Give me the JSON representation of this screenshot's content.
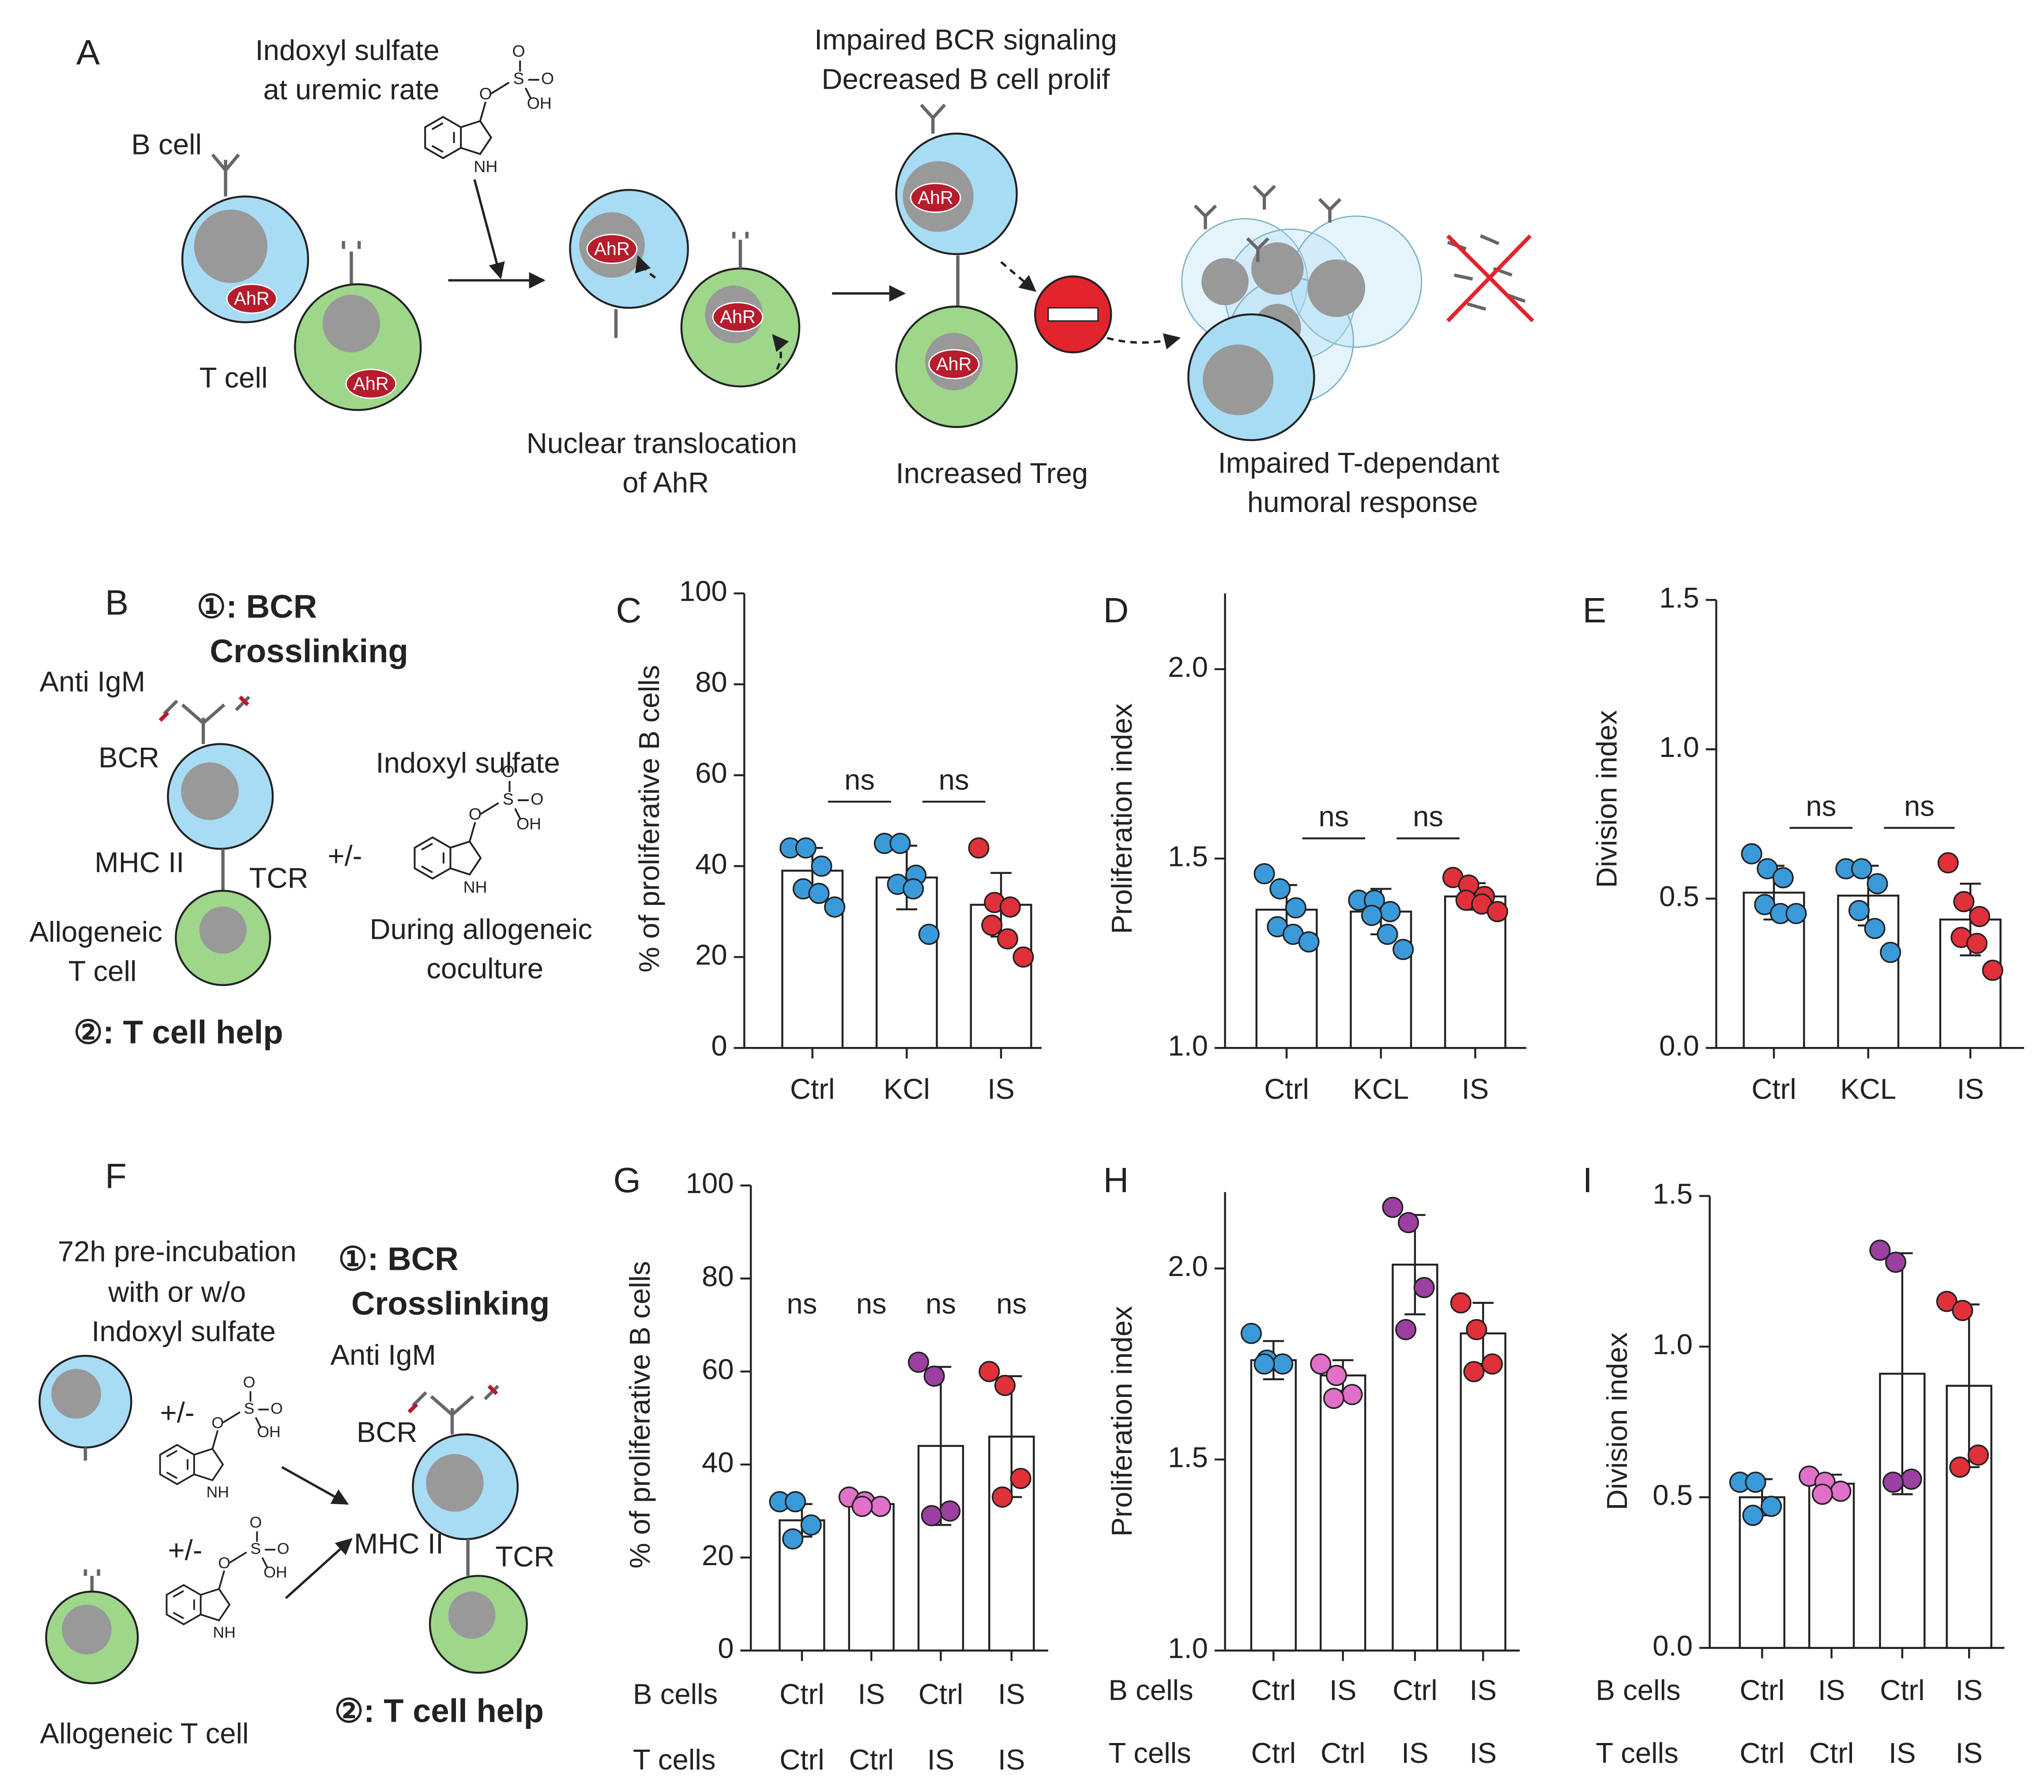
{
  "panels": {
    "A": {
      "letter": "A",
      "indoxyl": [
        "Indoxyl sulfate",
        "at uremic rate"
      ],
      "b_cell": "B cell",
      "t_cell": "T cell",
      "ahr": "AhR",
      "impaired_bcr": [
        "Impaired BCR signaling",
        "Decreased B cell prolif"
      ],
      "nuclear": [
        "Nuclear translocation",
        "of AhR"
      ],
      "treg": "Increased Treg",
      "humoral": [
        "Impaired T-dependant",
        "humoral response"
      ]
    },
    "B": {
      "letter": "B",
      "step1": [
        "①: BCR",
        "Crosslinking"
      ],
      "anti_igm": "Anti IgM",
      "bcr": "BCR",
      "mhc": "MHC II",
      "tcr": "TCR",
      "allo": [
        "Allogeneic",
        "T cell"
      ],
      "step2": "②: T cell help",
      "indoxyl": "Indoxyl sulfate",
      "pm": "+/-",
      "during": [
        "During allogeneic",
        "coculture"
      ]
    },
    "F": {
      "letter": "F",
      "preinc": [
        "72h pre-incubation",
        "with or w/o",
        "Indoxyl sulfate"
      ],
      "pm": "+/-",
      "allo": "Allogeneic T cell",
      "step1": [
        "①: BCR",
        "Crosslinking"
      ],
      "anti_igm": "Anti IgM",
      "bcr": "BCR",
      "mhc": "MHC II",
      "tcr": "TCR",
      "step2": "②: T cell help"
    }
  },
  "molecule": {
    "o": "O",
    "s": "S",
    "oh": "OH",
    "nh": "NH"
  },
  "chart_data": [
    {
      "type": "bar",
      "letter": "C",
      "y_label": "% of proliferative B cells",
      "categories": [
        "Ctrl",
        "KCl",
        "IS"
      ],
      "values": [
        39,
        37.5,
        31.5
      ],
      "errors": [
        5,
        7,
        7
      ],
      "points": [
        [
          44,
          44,
          40,
          35,
          34,
          31
        ],
        [
          45,
          45,
          38,
          36,
          35,
          25
        ],
        [
          44,
          32,
          31,
          27,
          24,
          20
        ]
      ],
      "point_colors": [
        "#3a9ad9",
        "#3a9ad9",
        "#e0303a"
      ],
      "bar_color": "#ffffff",
      "ylim": [
        0,
        100
      ],
      "yticks": [
        0,
        20,
        40,
        60,
        80,
        100
      ],
      "annotations": [
        "ns",
        "ns"
      ]
    },
    {
      "type": "bar",
      "letter": "D",
      "y_label": "Proliferation index",
      "categories": [
        "Ctrl",
        "KCL",
        "IS"
      ],
      "values": [
        1.365,
        1.36,
        1.4
      ],
      "errors": [
        0.065,
        0.06,
        0.035
      ],
      "points": [
        [
          1.46,
          1.42,
          1.37,
          1.32,
          1.3,
          1.28
        ],
        [
          1.39,
          1.39,
          1.36,
          1.35,
          1.3,
          1.26
        ],
        [
          1.45,
          1.43,
          1.4,
          1.39,
          1.38,
          1.36
        ]
      ],
      "point_colors": [
        "#3a9ad9",
        "#3a9ad9",
        "#e0303a"
      ],
      "bar_color": "#ffffff",
      "ylim": [
        1,
        2.2
      ],
      "yticks": [
        {
          "value": 1,
          "label": "1.0"
        },
        1.5,
        {
          "value": 2,
          "label": "2.0"
        }
      ],
      "annotations": [
        "ns",
        "ns"
      ]
    },
    {
      "type": "bar",
      "letter": "E",
      "y_label": "Division index",
      "categories": [
        "Ctrl",
        "KCL",
        "IS"
      ],
      "values": [
        0.52,
        0.51,
        0.43
      ],
      "errors": [
        0.09,
        0.1,
        0.12
      ],
      "points": [
        [
          0.65,
          0.6,
          0.57,
          0.48,
          0.45,
          0.45
        ],
        [
          0.6,
          0.6,
          0.55,
          0.46,
          0.4,
          0.32
        ],
        [
          0.62,
          0.49,
          0.44,
          0.37,
          0.35,
          0.26
        ]
      ],
      "point_colors": [
        "#3a9ad9",
        "#3a9ad9",
        "#e0303a"
      ],
      "bar_color": "#ffffff",
      "ylim": [
        0,
        1.5
      ],
      "yticks": [
        {
          "value": 0,
          "label": "0.0"
        },
        0.5,
        {
          "value": 1,
          "label": "1.0"
        },
        1.5
      ],
      "annotations": [
        "ns",
        "ns"
      ]
    },
    {
      "type": "bar",
      "letter": "G",
      "y_label": "% of proliferative B cells",
      "category_rows": [
        {
          "name": "B cells",
          "labels": [
            "Ctrl",
            "IS",
            "Ctrl",
            "IS"
          ]
        },
        {
          "name": "T cells",
          "labels": [
            "Ctrl",
            "Ctrl",
            "IS",
            "IS"
          ]
        }
      ],
      "values": [
        28,
        31.5,
        44,
        46
      ],
      "errors": [
        3.5,
        1.3,
        17,
        13
      ],
      "points": [
        [
          32,
          32,
          27,
          24
        ],
        [
          33,
          32,
          31,
          31
        ],
        [
          62,
          59,
          30,
          29
        ],
        [
          60,
          57,
          37,
          33
        ]
      ],
      "point_colors": [
        "#3a9ad9",
        "#e070c8",
        "#9b3fa0",
        "#e0303a"
      ],
      "bar_color": "#ffffff",
      "ylim": [
        0,
        100
      ],
      "yticks": [
        0,
        20,
        40,
        60,
        80,
        100
      ],
      "annotations": [
        "ns",
        "ns",
        "ns",
        "ns"
      ]
    },
    {
      "type": "bar",
      "letter": "H",
      "y_label": "Proliferation index",
      "category_rows": [
        {
          "name": "B cells",
          "labels": [
            "Ctrl",
            "IS",
            "Ctrl",
            "IS"
          ]
        },
        {
          "name": "T cells",
          "labels": [
            "Ctrl",
            "Ctrl",
            "IS",
            "IS"
          ]
        }
      ],
      "values": [
        1.76,
        1.72,
        2.01,
        1.83
      ],
      "errors": [
        0.05,
        0.04,
        0.13,
        0.08
      ],
      "points": [
        [
          1.83,
          1.76,
          1.75,
          1.75
        ],
        [
          1.75,
          1.72,
          1.67,
          1.66
        ],
        [
          2.16,
          2.12,
          1.95,
          1.84
        ],
        [
          1.91,
          1.84,
          1.75,
          1.73
        ]
      ],
      "point_colors": [
        "#3a9ad9",
        "#e070c8",
        "#9b3fa0",
        "#e0303a"
      ],
      "bar_color": "#ffffff",
      "ylim": [
        1,
        2.2
      ],
      "yticks": [
        {
          "value": 1,
          "label": "1.0"
        },
        1.5,
        {
          "value": 2,
          "label": "2.0"
        }
      ]
    },
    {
      "type": "bar",
      "letter": "I",
      "y_label": "Division index",
      "category_rows": [
        {
          "name": "B cells",
          "labels": [
            "Ctrl",
            "IS",
            "Ctrl",
            "IS"
          ]
        },
        {
          "name": "T cells",
          "labels": [
            "Ctrl",
            "Ctrl",
            "IS",
            "IS"
          ]
        }
      ],
      "values": [
        0.5,
        0.545,
        0.91,
        0.87
      ],
      "errors": [
        0.06,
        0.03,
        0.4,
        0.27
      ],
      "points": [
        [
          0.55,
          0.55,
          0.47,
          0.44
        ],
        [
          0.57,
          0.55,
          0.52,
          0.51
        ],
        [
          1.32,
          1.28,
          0.56,
          0.55
        ],
        [
          1.15,
          1.12,
          0.64,
          0.6
        ]
      ],
      "point_colors": [
        "#3a9ad9",
        "#e070c8",
        "#9b3fa0",
        "#e0303a"
      ],
      "bar_color": "#ffffff",
      "ylim": [
        0,
        1.5
      ],
      "yticks": [
        {
          "value": 0,
          "label": "0.0"
        },
        0.5,
        {
          "value": 1,
          "label": "1.0"
        },
        1.5
      ]
    }
  ]
}
